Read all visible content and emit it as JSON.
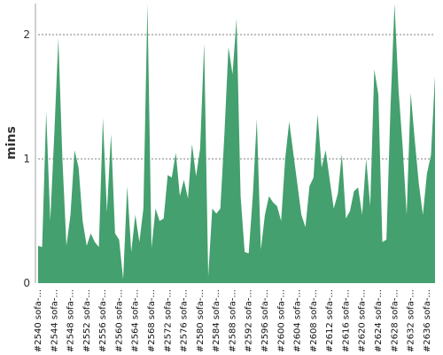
{
  "chart_data": {
    "type": "area",
    "ylabel": "mins",
    "ylim": [
      0,
      2.25
    ],
    "yticks": [
      0,
      1,
      2
    ],
    "ytick_labels": [
      "0",
      "1",
      "2"
    ],
    "grid": "horizontal",
    "color": "#44a06e",
    "x": [
      "2540",
      "2541",
      "2542",
      "2543",
      "2544",
      "2545",
      "2546",
      "2547",
      "2548",
      "2549",
      "2550",
      "2551",
      "2552",
      "2553",
      "2554",
      "2555",
      "2556",
      "2557",
      "2558",
      "2559",
      "2560",
      "2561",
      "2562",
      "2563",
      "2564",
      "2565",
      "2566",
      "2567",
      "2568",
      "2569",
      "2570",
      "2571",
      "2572",
      "2573",
      "2574",
      "2575",
      "2576",
      "2577",
      "2578",
      "2579",
      "2580",
      "2581",
      "2582",
      "2583",
      "2584",
      "2585",
      "2586",
      "2587",
      "2588",
      "2589",
      "2590",
      "2591",
      "2592",
      "2593",
      "2594",
      "2595",
      "2596",
      "2597",
      "2598",
      "2599",
      "2600",
      "2601",
      "2602",
      "2603",
      "2604",
      "2605",
      "2606",
      "2607",
      "2608",
      "2609",
      "2610",
      "2611",
      "2612",
      "2613",
      "2614",
      "2615",
      "2616",
      "2617",
      "2618",
      "2619",
      "2620",
      "2621",
      "2622",
      "2623",
      "2624",
      "2625",
      "2626",
      "2627",
      "2628",
      "2629",
      "2630",
      "2631",
      "2632",
      "2633",
      "2634",
      "2635",
      "2636",
      "2637",
      "2638"
    ],
    "values": [
      0.3,
      0.29,
      1.38,
      0.5,
      1.2,
      1.97,
      1.0,
      0.3,
      0.55,
      1.07,
      0.93,
      0.5,
      0.3,
      0.4,
      0.33,
      0.29,
      1.33,
      0.57,
      1.2,
      0.4,
      0.35,
      0.03,
      0.78,
      0.25,
      0.55,
      0.33,
      0.6,
      2.25,
      0.28,
      0.6,
      0.5,
      0.52,
      0.87,
      0.85,
      1.05,
      0.7,
      0.83,
      0.68,
      1.12,
      0.86,
      1.08,
      1.93,
      0.05,
      0.6,
      0.56,
      0.6,
      1.2,
      1.9,
      1.68,
      2.13,
      0.7,
      0.25,
      0.24,
      0.7,
      1.32,
      0.27,
      0.55,
      0.7,
      0.65,
      0.62,
      0.5,
      1.0,
      1.3,
      1.05,
      0.8,
      0.55,
      0.45,
      0.78,
      0.85,
      1.36,
      0.93,
      1.07,
      0.83,
      0.6,
      0.72,
      1.04,
      0.52,
      0.58,
      0.74,
      0.77,
      0.55,
      1.0,
      0.62,
      1.72,
      1.52,
      0.33,
      0.35,
      1.4,
      2.25,
      1.55,
      1.1,
      0.55,
      1.53,
      1.15,
      0.8,
      0.55,
      0.88,
      1.03,
      1.67
    ],
    "xtick_labels": [
      "#2540 sofa-...",
      "#2544 sofa-...",
      "#2548 sofa-...",
      "#2552 sofa-...",
      "#2556 sofa-...",
      "#2560 sofa-...",
      "#2564 sofa-...",
      "#2568 sofa-...",
      "#2572 sofa-...",
      "#2576 sofa-...",
      "#2580 sofa-...",
      "#2584 sofa-...",
      "#2588 sofa-...",
      "#2592 sofa-...",
      "#2596 sofa-...",
      "#2600 sofa-...",
      "#2604 sofa-...",
      "#2608 sofa-...",
      "#2612 sofa-...",
      "#2616 sofa-...",
      "#2620 sofa-...",
      "#2624 sofa-...",
      "#2628 sofa-...",
      "#2632 sofa-...",
      "#2636 sofa-..."
    ]
  }
}
